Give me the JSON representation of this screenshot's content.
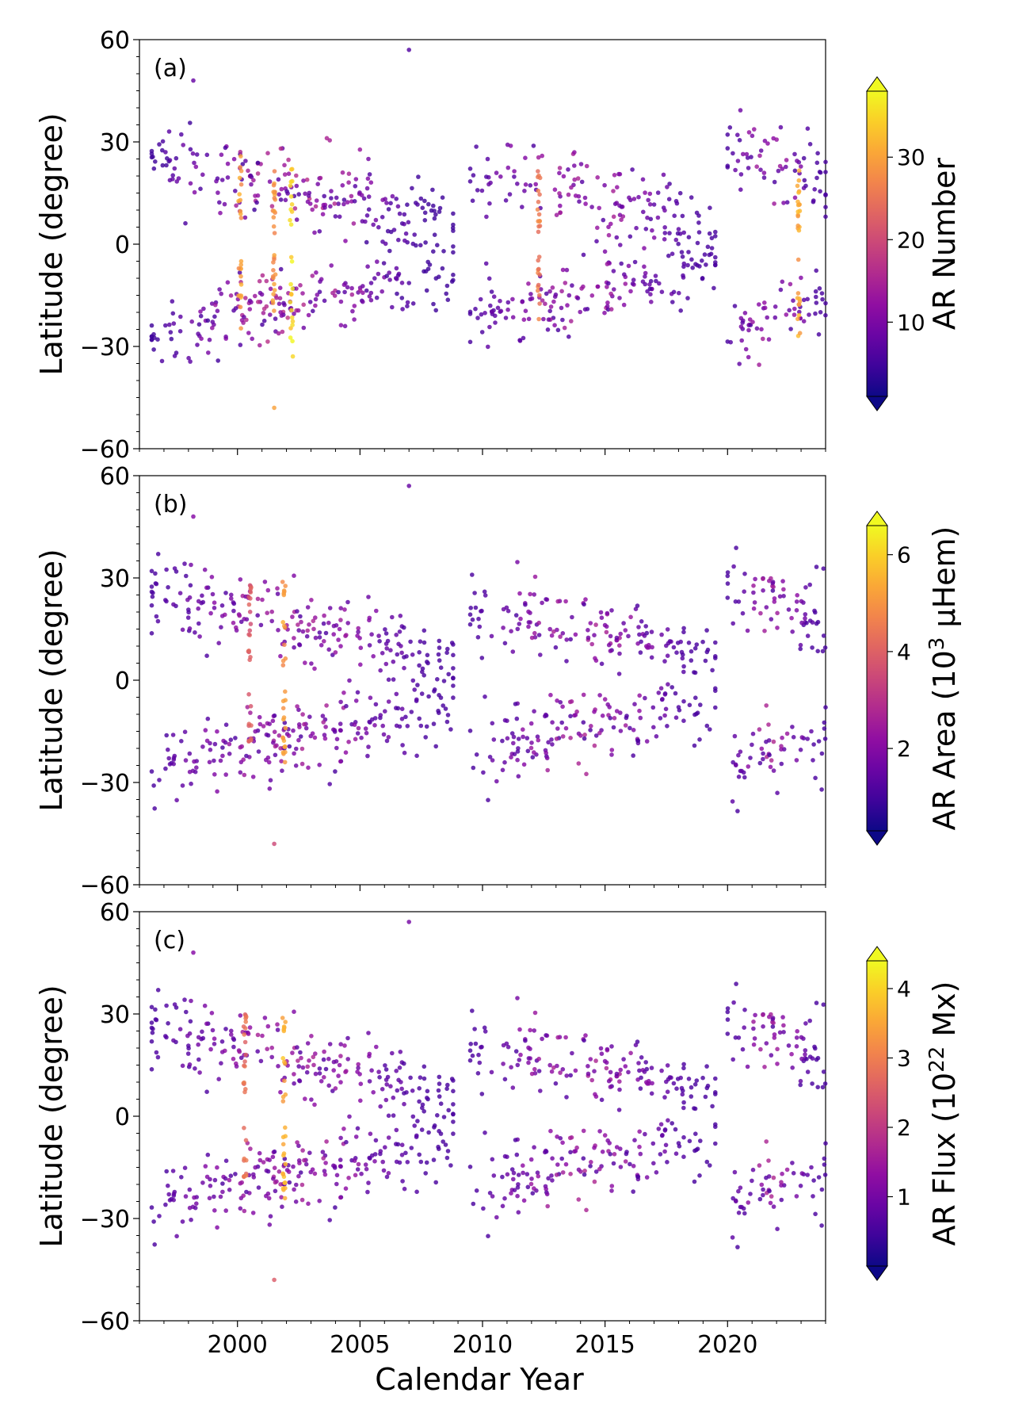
{
  "figure": {
    "xlabel": "Calendar Year",
    "xlim": [
      1996.0,
      2024.0
    ],
    "xticks": [
      2000,
      2005,
      2010,
      2015,
      2020
    ],
    "xtick_labels": [
      "2000",
      "2005",
      "2010",
      "2015",
      "2020"
    ],
    "colormap": "plasma"
  },
  "chart_data": [
    {
      "type": "scatter",
      "panel_label": "(a)",
      "ylabel": "Latitude (degree)",
      "xlim": [
        1996.0,
        2024.0
      ],
      "ylim": [
        -60,
        60
      ],
      "yticks": [
        -60,
        -30,
        0,
        30,
        60
      ],
      "ytick_labels": [
        "−60",
        "−30",
        "0",
        "30",
        "60"
      ],
      "colorbar": {
        "label": "AR Number",
        "range": [
          1,
          38
        ],
        "ticks": [
          10,
          20,
          30
        ],
        "tick_labels": [
          "10",
          "20",
          "30"
        ],
        "extend": "both"
      },
      "distribution": {
        "description_points_are_sunspot_active_regions_forming_butterfly_diagram": true,
        "cycles": [
          {
            "start": 1996.5,
            "end": 2008.8,
            "lat_start": 26,
            "lat_end": 6,
            "count": 430
          },
          {
            "start": 2009.5,
            "end": 2019.5,
            "lat_start": 22,
            "lat_end": 6,
            "count": 310
          },
          {
            "start": 2020.0,
            "end": 2024.0,
            "lat_start": 27,
            "lat_end": 17,
            "count": 130
          }
        ],
        "strong_bands": [
          {
            "x": 2002.2,
            "lat_min": -33,
            "lat_max": 27,
            "value": 38
          },
          {
            "x": 2000.1,
            "lat_min": -25,
            "lat_max": 30,
            "value": 32
          },
          {
            "x": 2001.5,
            "lat_min": -20,
            "lat_max": 25,
            "value": 31
          },
          {
            "x": 2012.3,
            "lat_min": -24,
            "lat_max": 22,
            "value": 28
          },
          {
            "x": 2022.9,
            "lat_min": -28,
            "lat_max": 25,
            "value": 33
          }
        ],
        "outliers": [
          {
            "x": 2007.0,
            "y": 57,
            "value": 6
          },
          {
            "x": 2001.5,
            "y": -48,
            "value": 30
          },
          {
            "x": 1998.2,
            "y": 48,
            "value": 8
          }
        ]
      }
    },
    {
      "type": "scatter",
      "panel_label": "(b)",
      "ylabel": "Latitude (degree)",
      "xlim": [
        1996.0,
        2024.0
      ],
      "ylim": [
        -60,
        60
      ],
      "yticks": [
        -60,
        -30,
        0,
        30,
        60
      ],
      "ytick_labels": [
        "−60",
        "−30",
        "0",
        "30",
        "60"
      ],
      "colorbar": {
        "label": "AR Area (10",
        "label_sup": "3",
        "label_suffix": " μHem)",
        "range": [
          0.3,
          6.6
        ],
        "ticks": [
          2,
          4,
          6
        ],
        "tick_labels": [
          "2",
          "4",
          "6"
        ],
        "extend": "both"
      },
      "distribution": {
        "cycles": [
          {
            "start": 1996.5,
            "end": 2008.8,
            "lat_start": 26,
            "lat_end": 6,
            "count": 430
          },
          {
            "start": 2009.5,
            "end": 2019.5,
            "lat_start": 22,
            "lat_end": 6,
            "count": 310
          },
          {
            "start": 2020.0,
            "end": 2024.0,
            "lat_start": 27,
            "lat_end": 17,
            "count": 130
          }
        ],
        "strong_bands": [
          {
            "x": 2001.9,
            "lat_min": -26,
            "lat_max": 29,
            "value": 5.5
          },
          {
            "x": 2000.5,
            "lat_min": -22,
            "lat_max": 28,
            "value": 4.2
          }
        ],
        "outliers": [
          {
            "x": 2007.0,
            "y": 57,
            "value": 1.5
          },
          {
            "x": 2001.5,
            "y": -48,
            "value": 3.5
          },
          {
            "x": 1998.2,
            "y": 48,
            "value": 2.0
          }
        ]
      }
    },
    {
      "type": "scatter",
      "panel_label": "(c)",
      "ylabel": "Latitude (degree)",
      "xlim": [
        1996.0,
        2024.0
      ],
      "ylim": [
        -60,
        60
      ],
      "yticks": [
        -60,
        -30,
        0,
        30,
        60
      ],
      "ytick_labels": [
        "−60",
        "−30",
        "0",
        "30",
        "60"
      ],
      "colorbar": {
        "label": "AR Flux (10",
        "label_sup": "22",
        "label_suffix": " Mx)",
        "range": [
          0.0,
          4.4
        ],
        "ticks": [
          1,
          2,
          3,
          4
        ],
        "tick_labels": [
          "1",
          "2",
          "3",
          "4"
        ],
        "extend": "both"
      },
      "distribution": {
        "cycles": [
          {
            "start": 1996.5,
            "end": 2008.8,
            "lat_start": 26,
            "lat_end": 6,
            "count": 430
          },
          {
            "start": 2009.5,
            "end": 2019.5,
            "lat_start": 22,
            "lat_end": 6,
            "count": 310
          },
          {
            "start": 2020.0,
            "end": 2024.0,
            "lat_start": 27,
            "lat_end": 17,
            "count": 130
          }
        ],
        "strong_bands": [
          {
            "x": 2001.9,
            "lat_min": -26,
            "lat_max": 29,
            "value": 3.9
          },
          {
            "x": 2000.3,
            "lat_min": -22,
            "lat_max": 30,
            "value": 3.0
          }
        ],
        "outliers": [
          {
            "x": 2007.0,
            "y": 57,
            "value": 1.0
          },
          {
            "x": 2001.5,
            "y": -48,
            "value": 2.5
          },
          {
            "x": 1998.2,
            "y": 48,
            "value": 1.2
          }
        ]
      }
    }
  ]
}
